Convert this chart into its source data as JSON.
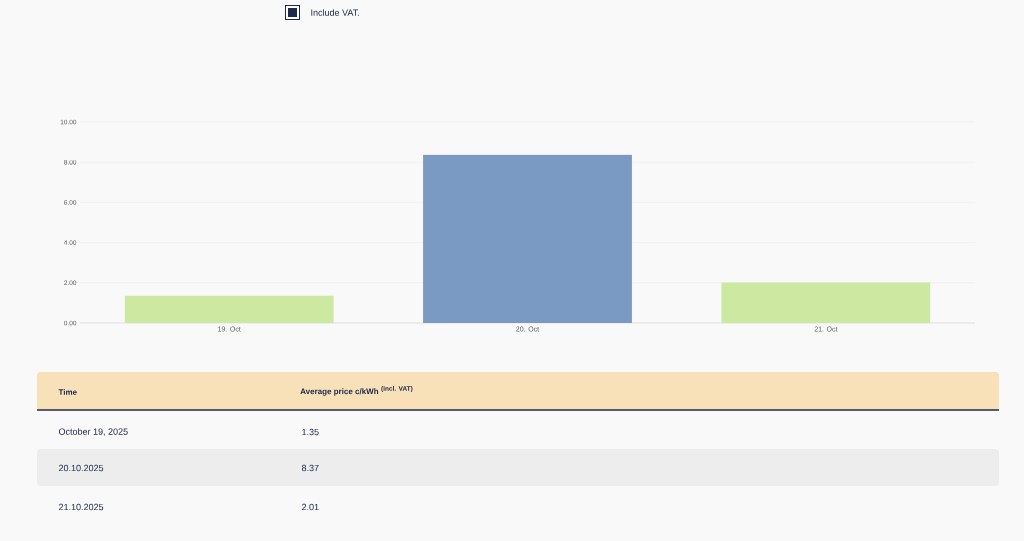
{
  "chart_data": {
    "type": "bar",
    "categories": [
      "19. Oct",
      "20. Oct",
      "21. Oct"
    ],
    "values": [
      1.35,
      8.37,
      2.01
    ],
    "colors": [
      "#cde8a0",
      "#7b9ac3",
      "#cde8a0"
    ],
    "ylim": [
      0,
      10
    ],
    "yticks": [
      {
        "value": 0,
        "label": "0.00"
      },
      {
        "value": 2,
        "label": "2.00"
      },
      {
        "value": 4,
        "label": "4.00"
      },
      {
        "value": 6,
        "label": "6.00"
      },
      {
        "value": 8,
        "label": "8.00"
      },
      {
        "value": 10,
        "label": "10.00"
      }
    ],
    "grid": "y",
    "annotations": [
      "Include VAT.",
      "Time",
      "Average price c/kWh",
      "(incl. VAT)",
      "October 19, 2025",
      "1.35",
      "20.10.2025",
      "8.37",
      "21.10.2025",
      "2.01"
    ]
  }
}
